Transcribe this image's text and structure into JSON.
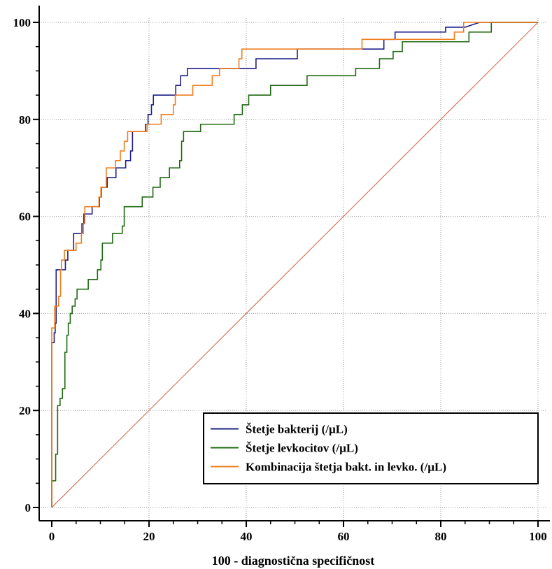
{
  "chart_data": {
    "type": "line",
    "title": "",
    "xlabel": "100 - diagnostična specifičnost",
    "ylabel": "",
    "xlim": [
      0,
      100
    ],
    "ylim": [
      0,
      100
    ],
    "x_ticks": [
      "0",
      "20",
      "40",
      "60",
      "80",
      "100"
    ],
    "y_ticks": [
      "0",
      "20",
      "40",
      "60",
      "80",
      "100"
    ],
    "grid": true,
    "legend_position": "bottom-right",
    "series": [
      {
        "name": "Štetje bakterij (/µL)",
        "color": "#1f1f8a",
        "points": [
          [
            0,
            0
          ],
          [
            0,
            34
          ],
          [
            0.5,
            34
          ],
          [
            0.5,
            36
          ],
          [
            0.7,
            36
          ],
          [
            0.7,
            38
          ],
          [
            0.9,
            38
          ],
          [
            0.9,
            49
          ],
          [
            2.8,
            49
          ],
          [
            2.8,
            51
          ],
          [
            3.3,
            51
          ],
          [
            3.3,
            53
          ],
          [
            4.5,
            53
          ],
          [
            4.5,
            56.5
          ],
          [
            6.2,
            56.5
          ],
          [
            6.2,
            58.5
          ],
          [
            6.6,
            58.5
          ],
          [
            6.6,
            60.5
          ],
          [
            8.3,
            60.5
          ],
          [
            8.3,
            62
          ],
          [
            9.8,
            62
          ],
          [
            9.8,
            64
          ],
          [
            10.2,
            64
          ],
          [
            10.2,
            66
          ],
          [
            11.4,
            66
          ],
          [
            11.4,
            68
          ],
          [
            13.2,
            68
          ],
          [
            13.2,
            70
          ],
          [
            15.2,
            70
          ],
          [
            15.2,
            71.5
          ],
          [
            16.2,
            71.5
          ],
          [
            16.2,
            73.5
          ],
          [
            16.6,
            73.5
          ],
          [
            16.6,
            77.5
          ],
          [
            19.3,
            77.5
          ],
          [
            19.3,
            79
          ],
          [
            19.8,
            79
          ],
          [
            19.8,
            81
          ],
          [
            20.5,
            81
          ],
          [
            20.5,
            83
          ],
          [
            20.9,
            83
          ],
          [
            20.9,
            85
          ],
          [
            25.5,
            85
          ],
          [
            25.5,
            87
          ],
          [
            26.5,
            87
          ],
          [
            26.5,
            89
          ],
          [
            27.9,
            89
          ],
          [
            27.9,
            90.5
          ],
          [
            42,
            90.5
          ],
          [
            42,
            92.5
          ],
          [
            50.5,
            92.5
          ],
          [
            50.5,
            94.5
          ],
          [
            68.3,
            94.5
          ],
          [
            68.3,
            96.5
          ],
          [
            70.6,
            96.5
          ],
          [
            70.6,
            98
          ],
          [
            81,
            98
          ],
          [
            81,
            99
          ],
          [
            85,
            99
          ],
          [
            88,
            100
          ],
          [
            100,
            100
          ]
        ]
      },
      {
        "name": "Štetje levkocitov (/µL)",
        "color": "#1f6b12",
        "points": [
          [
            0,
            0
          ],
          [
            0,
            5.5
          ],
          [
            0.8,
            5.5
          ],
          [
            0.8,
            11
          ],
          [
            1.2,
            11
          ],
          [
            1.2,
            21
          ],
          [
            1.7,
            21
          ],
          [
            1.7,
            22.5
          ],
          [
            2.2,
            22.5
          ],
          [
            2.2,
            24.5
          ],
          [
            2.7,
            24.5
          ],
          [
            2.7,
            32
          ],
          [
            3.1,
            32
          ],
          [
            3.1,
            35.5
          ],
          [
            3.4,
            35.5
          ],
          [
            3.4,
            38
          ],
          [
            3.8,
            38
          ],
          [
            3.8,
            40
          ],
          [
            4.2,
            40
          ],
          [
            4.2,
            41.5
          ],
          [
            4.8,
            41.5
          ],
          [
            4.8,
            43
          ],
          [
            5.2,
            43
          ],
          [
            5.2,
            45
          ],
          [
            7.5,
            45
          ],
          [
            7.5,
            47
          ],
          [
            9.4,
            47
          ],
          [
            9.4,
            49
          ],
          [
            10.1,
            49
          ],
          [
            10.1,
            51
          ],
          [
            10.4,
            51
          ],
          [
            10.4,
            54.5
          ],
          [
            12.5,
            54.5
          ],
          [
            12.5,
            56.5
          ],
          [
            14.5,
            56.5
          ],
          [
            14.5,
            58
          ],
          [
            14.9,
            58
          ],
          [
            14.9,
            62
          ],
          [
            18.6,
            62
          ],
          [
            18.6,
            64
          ],
          [
            20.8,
            64
          ],
          [
            20.8,
            66
          ],
          [
            22.3,
            66
          ],
          [
            22.3,
            68
          ],
          [
            24.2,
            68
          ],
          [
            24.2,
            70
          ],
          [
            26.3,
            70
          ],
          [
            26.3,
            71.5
          ],
          [
            26.7,
            71.5
          ],
          [
            26.7,
            75.5
          ],
          [
            27.1,
            75.5
          ],
          [
            27.1,
            77.5
          ],
          [
            30.6,
            77.5
          ],
          [
            30.6,
            79
          ],
          [
            37.5,
            79
          ],
          [
            37.5,
            81
          ],
          [
            39.2,
            81
          ],
          [
            39.2,
            83
          ],
          [
            40.5,
            83
          ],
          [
            40.5,
            85
          ],
          [
            45,
            85
          ],
          [
            45,
            87
          ],
          [
            52.5,
            87
          ],
          [
            52.5,
            89
          ],
          [
            62.5,
            89
          ],
          [
            62.5,
            90.5
          ],
          [
            67.4,
            90.5
          ],
          [
            67.4,
            92.5
          ],
          [
            70.2,
            92.5
          ],
          [
            70.2,
            94
          ],
          [
            72.1,
            94
          ],
          [
            72.1,
            96
          ],
          [
            85.8,
            96
          ],
          [
            85.8,
            98
          ],
          [
            90.4,
            98
          ],
          [
            90.4,
            100
          ],
          [
            100,
            100
          ]
        ]
      },
      {
        "name": "Kombinacija štetja bakt. in levko. (/µL)",
        "color": "#f07e1e",
        "points": [
          [
            0,
            0
          ],
          [
            0,
            37
          ],
          [
            0.6,
            37
          ],
          [
            0.6,
            41.5
          ],
          [
            1.4,
            41.5
          ],
          [
            1.4,
            43.5
          ],
          [
            1.8,
            43.5
          ],
          [
            1.8,
            49
          ],
          [
            2,
            49
          ],
          [
            2,
            51
          ],
          [
            2.6,
            51
          ],
          [
            2.6,
            53
          ],
          [
            5,
            53
          ],
          [
            5,
            54.5
          ],
          [
            6.1,
            54.5
          ],
          [
            6.1,
            56.5
          ],
          [
            6.5,
            56.5
          ],
          [
            6.5,
            58.5
          ],
          [
            6.8,
            58.5
          ],
          [
            6.8,
            62
          ],
          [
            9.7,
            62
          ],
          [
            9.7,
            64
          ],
          [
            10.1,
            64
          ],
          [
            10.1,
            66
          ],
          [
            11.2,
            66
          ],
          [
            11.2,
            70
          ],
          [
            13.1,
            70
          ],
          [
            13.1,
            71.5
          ],
          [
            14.1,
            71.5
          ],
          [
            14.1,
            73.5
          ],
          [
            14.9,
            73.5
          ],
          [
            14.9,
            75.5
          ],
          [
            15.6,
            75.5
          ],
          [
            15.6,
            77.5
          ],
          [
            19.6,
            77.5
          ],
          [
            19.6,
            79
          ],
          [
            22.5,
            79
          ],
          [
            22.5,
            81
          ],
          [
            25,
            81
          ],
          [
            25,
            83
          ],
          [
            25.4,
            83
          ],
          [
            25.4,
            85
          ],
          [
            29,
            85
          ],
          [
            29,
            87
          ],
          [
            33,
            87
          ],
          [
            33,
            89
          ],
          [
            34.5,
            89
          ],
          [
            34.5,
            90.5
          ],
          [
            38.5,
            90.5
          ],
          [
            38.5,
            92.5
          ],
          [
            39.1,
            92.5
          ],
          [
            39.1,
            94.5
          ],
          [
            63.8,
            94.5
          ],
          [
            63.8,
            96.5
          ],
          [
            82.8,
            96.5
          ],
          [
            82.8,
            98
          ],
          [
            84.7,
            98
          ],
          [
            84.7,
            100
          ],
          [
            100,
            100
          ]
        ]
      },
      {
        "name": "",
        "color": "#c8502a",
        "points": [
          [
            0,
            0
          ],
          [
            100,
            100
          ]
        ]
      }
    ]
  }
}
